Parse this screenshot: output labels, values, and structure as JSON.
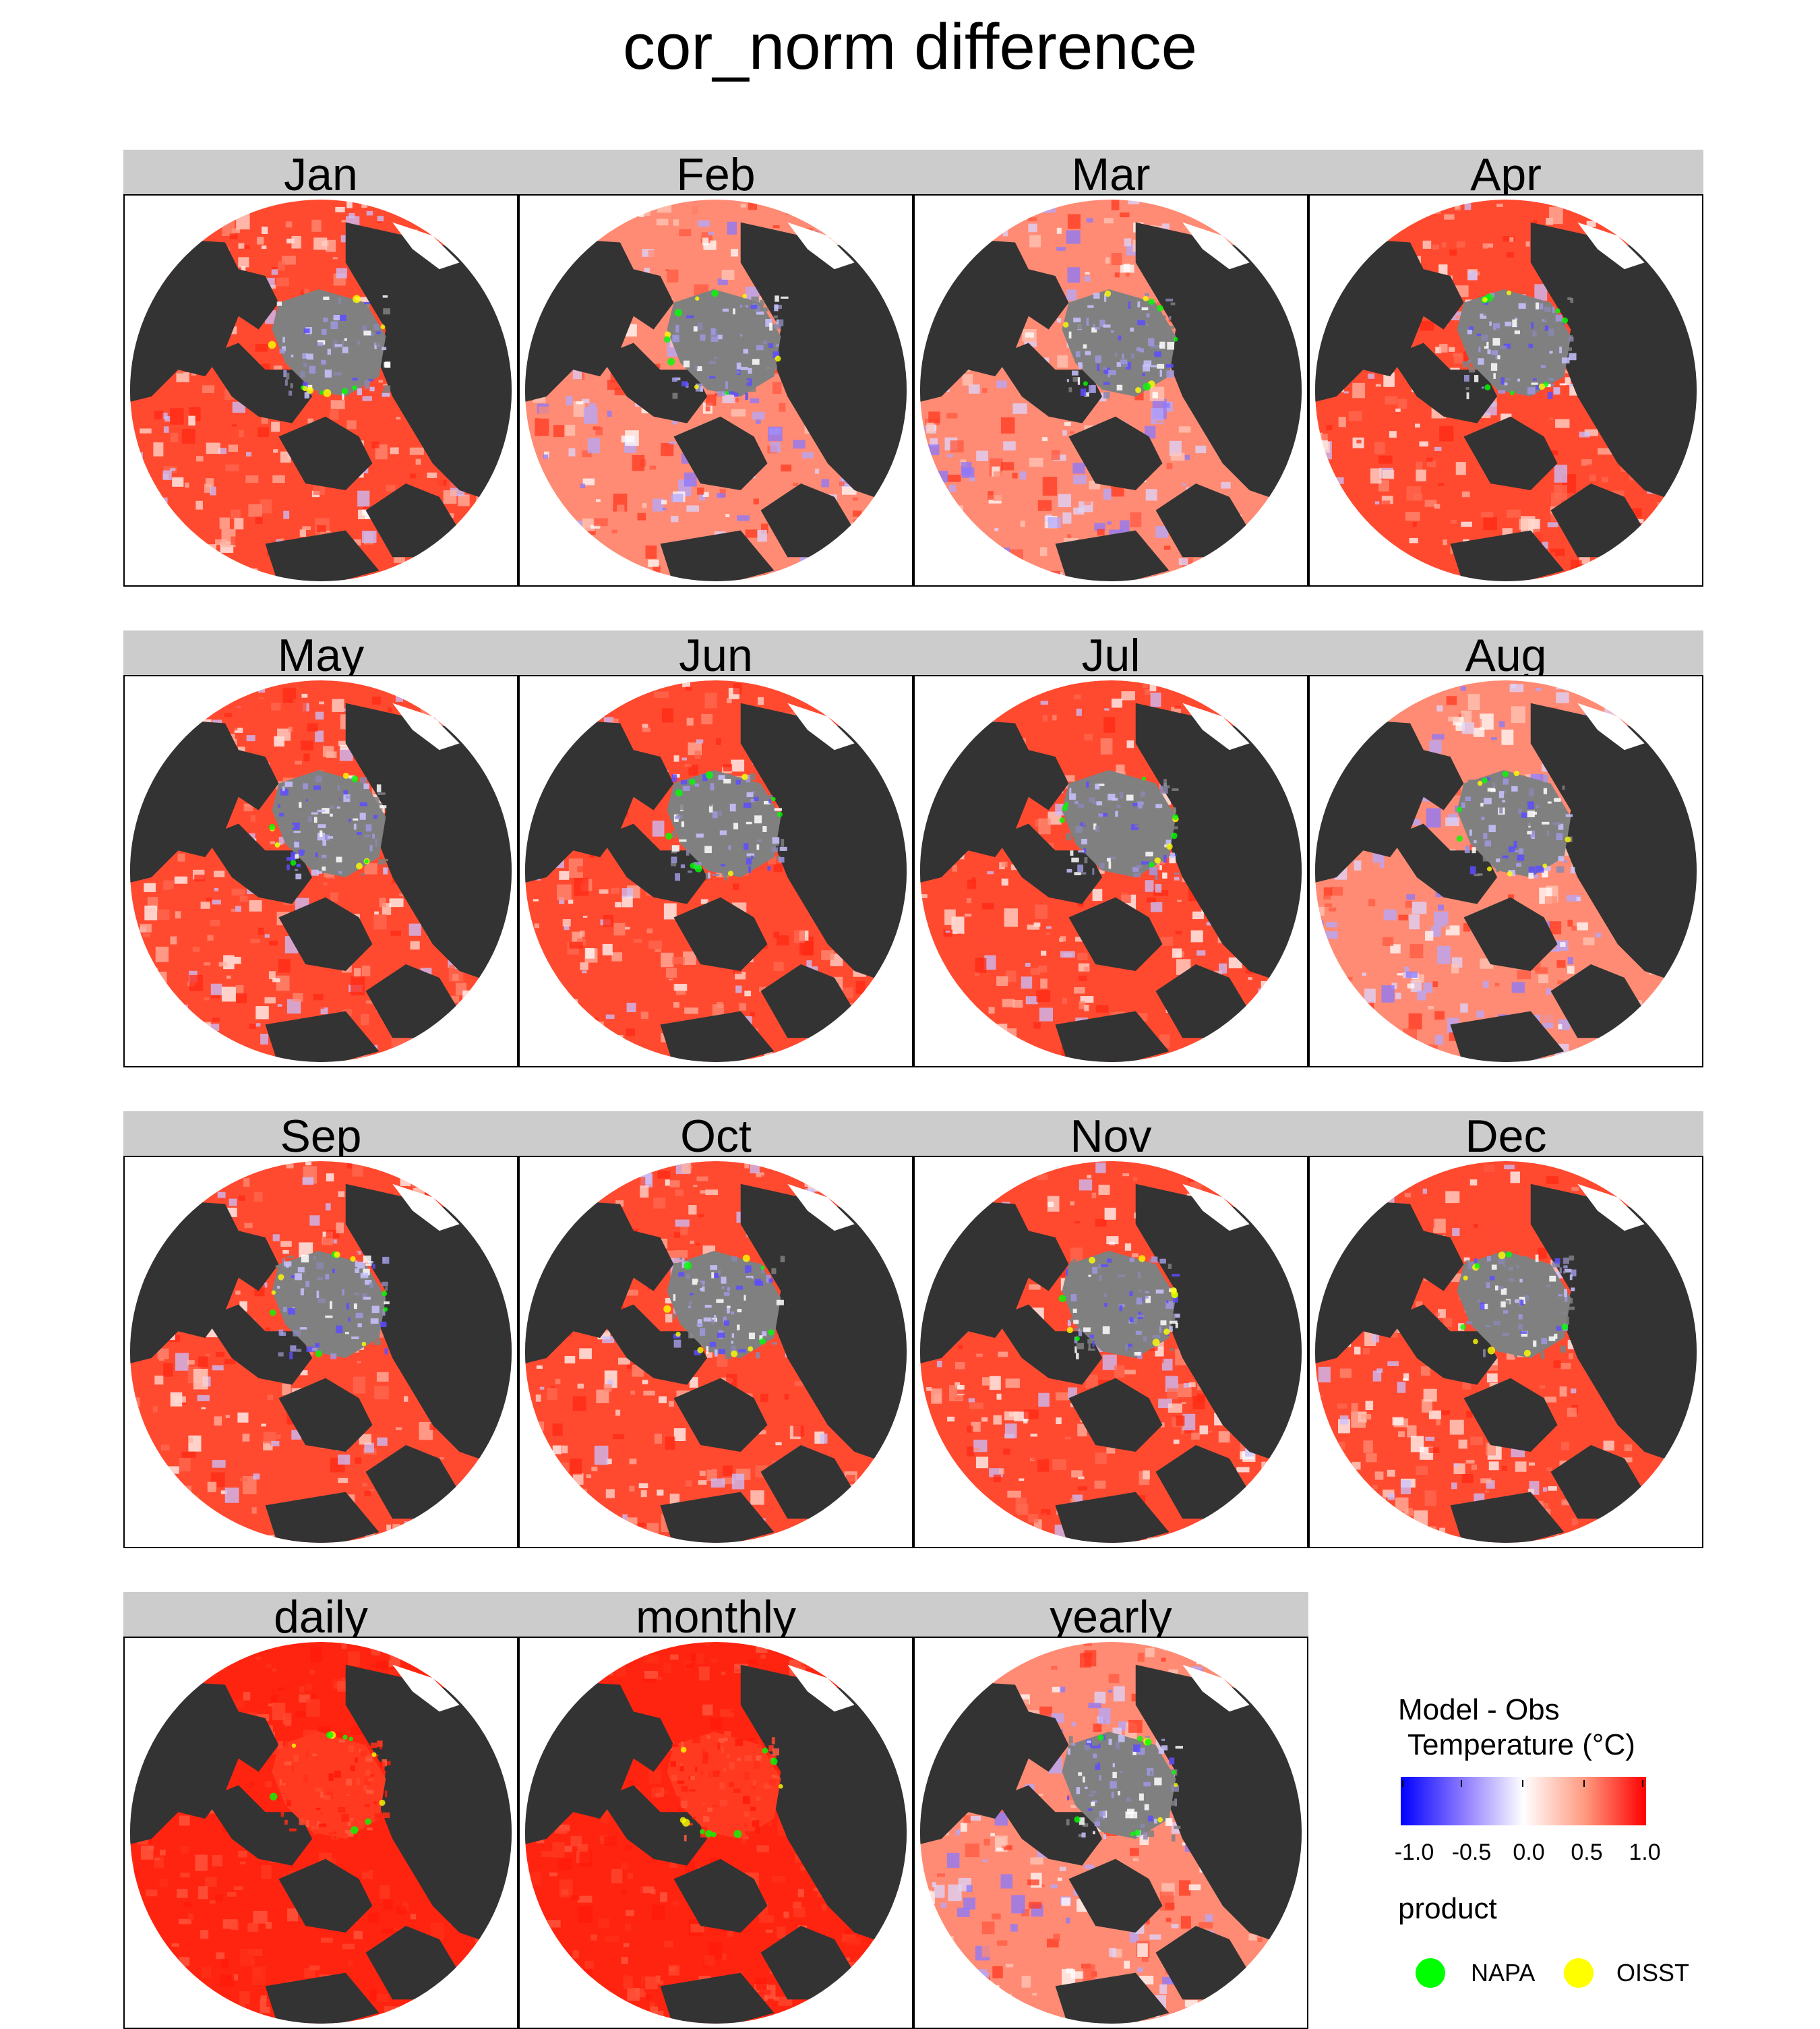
{
  "title": "cor_norm difference",
  "chart_data": {
    "type": "heatmap",
    "title": "cor_norm difference",
    "projection": "polar stereographic (north pole)",
    "panels": [
      "Jan",
      "Feb",
      "Mar",
      "Apr",
      "May",
      "Jun",
      "Jul",
      "Aug",
      "Sep",
      "Oct",
      "Nov",
      "Dec",
      "daily",
      "monthly",
      "yearly"
    ],
    "colorscale": {
      "title": "Model - Obs",
      "subtitle": "Temperature (°C)",
      "range": [
        -1.0,
        1.0
      ],
      "ticks": [
        "-1.0",
        "-0.5",
        "0.0",
        "0.5",
        "1.0"
      ],
      "colors": [
        "#0000ff",
        "#ffffff",
        "#ff0000"
      ]
    },
    "product_legend": {
      "title": "product",
      "items": [
        {
          "name": "NAPA",
          "color": "#00ff00"
        },
        {
          "name": "OISST",
          "color": "#ffff00"
        }
      ]
    },
    "land_color": "#333333",
    "sea_ice_color": "#808080",
    "panel_dominant_sign": {
      "Jan": "positive",
      "Feb": "mixed",
      "Mar": "mixed",
      "Apr": "positive",
      "May": "positive",
      "Jun": "positive",
      "Jul": "positive",
      "Aug": "mixed",
      "Sep": "positive",
      "Oct": "positive",
      "Nov": "positive",
      "Dec": "positive",
      "daily": "strong positive",
      "monthly": "strong positive",
      "yearly": "mixed"
    }
  }
}
